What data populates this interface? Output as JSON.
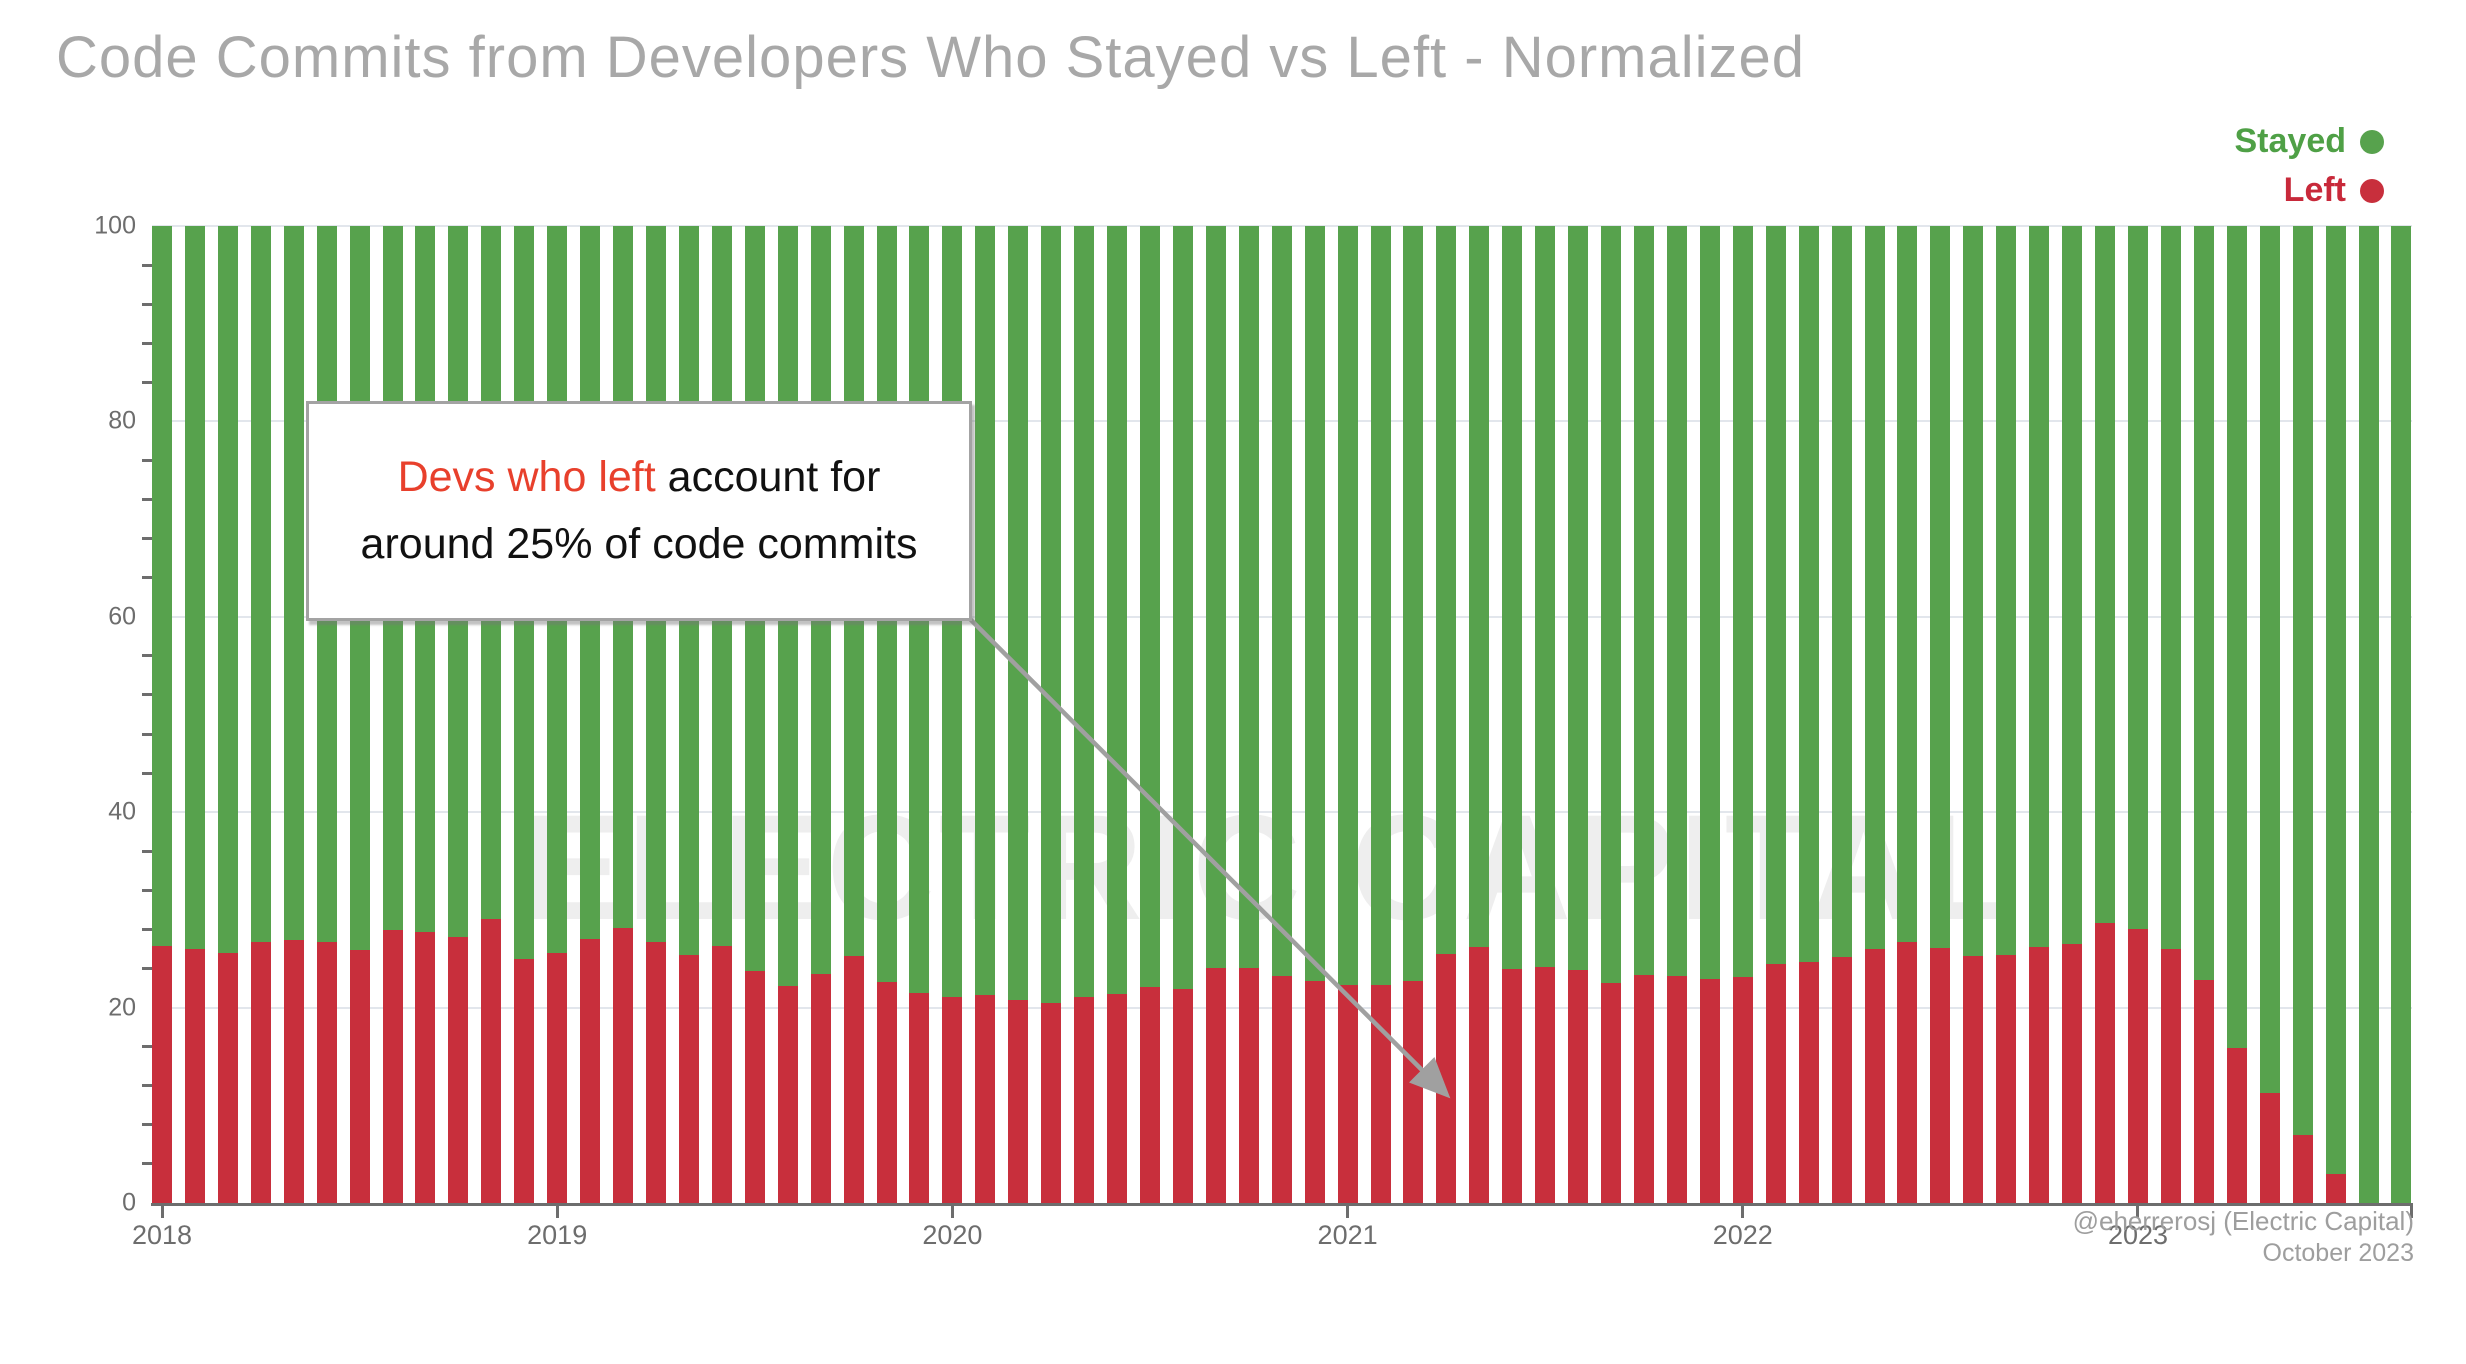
{
  "title": "Code Commits from Developers Who Stayed vs Left - Normalized",
  "legend": {
    "stayed": "Stayed",
    "left": "Left"
  },
  "watermark": "ELECTRIC CAPITAL",
  "annotation": {
    "highlight": "Devs who left",
    "line1_rest": " account for",
    "line2": "around 25% of code commits"
  },
  "footer": {
    "credit": "@eherrerosj (Electric Capital)",
    "date": "October 2023"
  },
  "colors": {
    "stayed": "#57a24d",
    "left": "#c82f3c",
    "legend_stayed_text": "#4fa046",
    "legend_left_text": "#c8293a",
    "annotation_red": "#e8402c",
    "arrow": "#a0a0a0",
    "grid": "#e2e6ec",
    "axis": "#6d6d6d",
    "title_gray": "#a8a8a8",
    "watermark_gray": "#eeeeee"
  },
  "chart_data": {
    "type": "bar",
    "stacked": true,
    "normalized": true,
    "title": "Code Commits from Developers Who Stayed vs Left - Normalized",
    "xlabel": "",
    "ylabel": "",
    "ylim": [
      0,
      100
    ],
    "yticks": [
      0,
      20,
      40,
      60,
      80,
      100
    ],
    "ytick_minor_step": 4,
    "grid": "horizontal",
    "legend_position": "top-right",
    "x_year_labels": [
      "2018",
      "2019",
      "2020",
      "2021",
      "2022",
      "2023"
    ],
    "x": [
      "2018-01",
      "2018-02",
      "2018-03",
      "2018-04",
      "2018-05",
      "2018-06",
      "2018-07",
      "2018-08",
      "2018-09",
      "2018-10",
      "2018-11",
      "2018-12",
      "2019-01",
      "2019-02",
      "2019-03",
      "2019-04",
      "2019-05",
      "2019-06",
      "2019-07",
      "2019-08",
      "2019-09",
      "2019-10",
      "2019-11",
      "2019-12",
      "2020-01",
      "2020-02",
      "2020-03",
      "2020-04",
      "2020-05",
      "2020-06",
      "2020-07",
      "2020-08",
      "2020-09",
      "2020-10",
      "2020-11",
      "2020-12",
      "2021-01",
      "2021-02",
      "2021-03",
      "2021-04",
      "2021-05",
      "2021-06",
      "2021-07",
      "2021-08",
      "2021-09",
      "2021-10",
      "2021-11",
      "2021-12",
      "2022-01",
      "2022-02",
      "2022-03",
      "2022-04",
      "2022-05",
      "2022-06",
      "2022-07",
      "2022-08",
      "2022-09",
      "2022-10",
      "2022-11",
      "2022-12",
      "2023-01",
      "2023-02",
      "2023-03",
      "2023-04",
      "2023-05",
      "2023-06",
      "2023-07",
      "2023-08",
      "2023-09"
    ],
    "series": [
      {
        "name": "Left",
        "color": "#c82f3c",
        "values": [
          26.3,
          26.0,
          25.6,
          26.7,
          26.9,
          26.7,
          25.9,
          27.9,
          27.7,
          27.2,
          29.1,
          25.0,
          25.6,
          27.0,
          28.1,
          26.7,
          25.4,
          26.3,
          23.7,
          22.2,
          23.4,
          25.3,
          22.6,
          21.5,
          21.1,
          21.3,
          20.8,
          20.5,
          21.1,
          21.4,
          22.1,
          21.9,
          24.1,
          24.1,
          23.2,
          22.7,
          22.3,
          22.3,
          22.7,
          25.5,
          26.2,
          24.0,
          24.2,
          23.9,
          22.5,
          23.3,
          23.2,
          22.9,
          23.1,
          24.5,
          24.7,
          25.2,
          26.0,
          26.7,
          26.1,
          25.3,
          25.4,
          26.2,
          26.5,
          28.7,
          28.0,
          26.0,
          22.8,
          15.9,
          11.3,
          7.0,
          3.0,
          0.0,
          0.0
        ]
      },
      {
        "name": "Stayed",
        "color": "#57a24d",
        "values": [
          73.7,
          74.0,
          74.4,
          73.3,
          73.1,
          73.3,
          74.1,
          72.1,
          72.3,
          72.8,
          70.9,
          75.0,
          74.4,
          73.0,
          71.9,
          73.3,
          74.6,
          73.7,
          76.3,
          77.8,
          76.6,
          74.7,
          77.4,
          78.5,
          78.9,
          78.7,
          79.2,
          79.5,
          78.9,
          78.6,
          77.9,
          78.1,
          75.9,
          75.9,
          76.8,
          77.3,
          77.7,
          77.7,
          77.3,
          74.5,
          73.8,
          76.0,
          75.8,
          76.1,
          77.5,
          76.7,
          76.8,
          77.1,
          76.9,
          75.5,
          75.3,
          74.8,
          74.0,
          73.3,
          73.9,
          74.7,
          74.6,
          73.8,
          73.5,
          71.3,
          72.0,
          74.0,
          77.2,
          84.1,
          88.7,
          93.0,
          97.0,
          100.0,
          100.0
        ]
      }
    ],
    "annotation_text": "Devs who left account for around 25% of code commits"
  }
}
